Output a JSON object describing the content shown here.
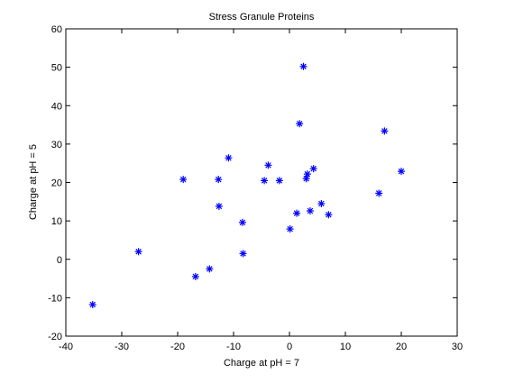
{
  "chart_data": {
    "type": "scatter",
    "title": "Stress Granule Proteins",
    "xlabel": "Charge at pH = 7",
    "ylabel": "Charge at pH = 5",
    "xlim": [
      -40,
      30
    ],
    "ylim": [
      -20,
      60
    ],
    "xticks": [
      -40,
      -30,
      -20,
      -10,
      0,
      10,
      20,
      30
    ],
    "yticks": [
      -20,
      -10,
      0,
      10,
      20,
      30,
      40,
      50,
      60
    ],
    "grid": false,
    "marker": "asterisk",
    "marker_color": "#0000ff",
    "points": [
      {
        "x": -35.2,
        "y": -11.8
      },
      {
        "x": -27.0,
        "y": 2.0
      },
      {
        "x": -19.0,
        "y": 20.8
      },
      {
        "x": -16.8,
        "y": -4.5
      },
      {
        "x": -14.3,
        "y": -2.5
      },
      {
        "x": -12.7,
        "y": 20.8
      },
      {
        "x": -12.6,
        "y": 13.8
      },
      {
        "x": -10.9,
        "y": 26.4
      },
      {
        "x": -8.4,
        "y": 9.6
      },
      {
        "x": -8.3,
        "y": 1.5
      },
      {
        "x": -4.5,
        "y": 20.5
      },
      {
        "x": -3.8,
        "y": 24.5
      },
      {
        "x": -1.8,
        "y": 20.5
      },
      {
        "x": 0.1,
        "y": 7.9
      },
      {
        "x": 1.3,
        "y": 12.0
      },
      {
        "x": 1.8,
        "y": 35.3
      },
      {
        "x": 2.5,
        "y": 50.2
      },
      {
        "x": 3.0,
        "y": 21.0
      },
      {
        "x": 3.2,
        "y": 22.2
      },
      {
        "x": 3.7,
        "y": 12.6
      },
      {
        "x": 4.3,
        "y": 23.6
      },
      {
        "x": 5.7,
        "y": 14.5
      },
      {
        "x": 7.0,
        "y": 11.6
      },
      {
        "x": 16.0,
        "y": 17.2
      },
      {
        "x": 17.0,
        "y": 33.4
      },
      {
        "x": 20.0,
        "y": 22.9
      }
    ]
  }
}
